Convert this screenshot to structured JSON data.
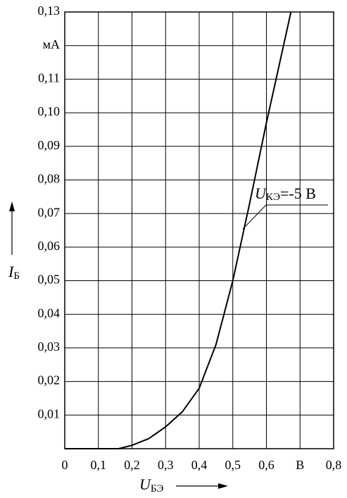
{
  "chart_data": {
    "type": "line",
    "x": [
      0,
      0.16,
      0.2,
      0.25,
      0.3,
      0.35,
      0.4,
      0.45,
      0.5,
      0.55,
      0.6,
      0.673
    ],
    "values": [
      0,
      0,
      0.001,
      0.003,
      0.0065,
      0.011,
      0.018,
      0.031,
      0.05,
      0.073,
      0.097,
      0.13
    ],
    "color": "#000000",
    "xlim": [
      0,
      0.8
    ],
    "xticks": [
      0,
      {
        "value": 0.1,
        "label": "0,1"
      },
      {
        "value": 0.2,
        "label": "0,2"
      },
      {
        "value": 0.3,
        "label": "0,3"
      },
      {
        "value": 0.4,
        "label": "0,4"
      },
      {
        "value": 0.5,
        "label": "0,5"
      },
      {
        "value": 0.6,
        "label": "0,6"
      },
      {
        "value": 0.7,
        "label": "В"
      },
      {
        "value": 0.8,
        "label": "0,8"
      }
    ],
    "ylim": [
      0,
      0.13
    ],
    "yticks": [
      {
        "value": 0.01,
        "label": "0,01"
      },
      {
        "value": 0.02,
        "label": "0,02"
      },
      {
        "value": 0.03,
        "label": "0,03"
      },
      {
        "value": 0.04,
        "label": "0,04"
      },
      {
        "value": 0.05,
        "label": "0,05"
      },
      {
        "value": 0.06,
        "label": "0,06"
      },
      {
        "value": 0.07,
        "label": "0,07"
      },
      {
        "value": 0.08,
        "label": "0,08"
      },
      {
        "value": 0.09,
        "label": "0,09"
      },
      {
        "value": 0.1,
        "label": "0,10"
      },
      {
        "value": 0.11,
        "label": "0,11"
      },
      {
        "value": 0.12,
        "label": "мА"
      },
      {
        "value": 0.13,
        "label": "0,13"
      }
    ],
    "grid": true,
    "annotation": {
      "text": "U",
      "subscript": "КЭ",
      "suffix": "=-5 В"
    },
    "y_label": {
      "text": "I",
      "subscript": "Б"
    },
    "x_label": {
      "text": "U",
      "subscript": "БЭ"
    }
  }
}
